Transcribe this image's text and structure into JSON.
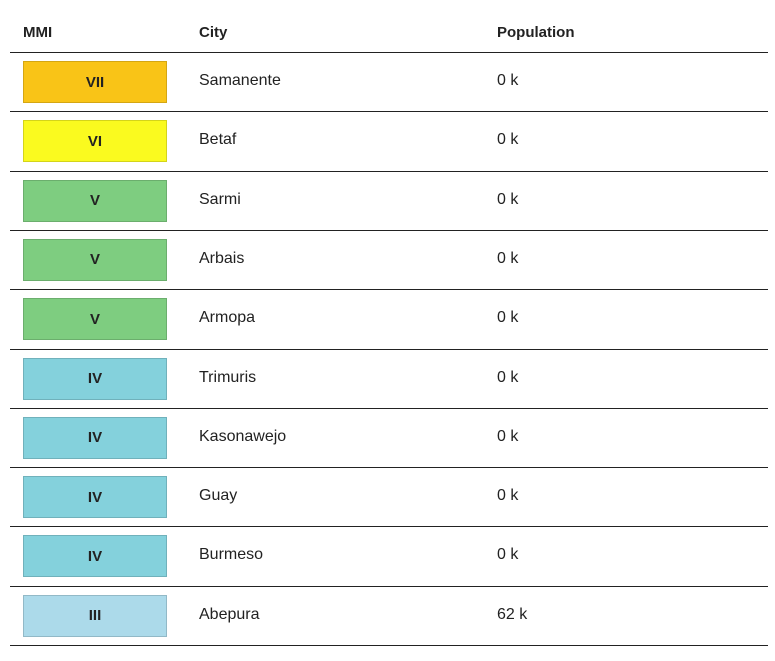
{
  "table": {
    "headers": [
      "MMI",
      "City",
      "Population"
    ],
    "rows": [
      {
        "mmi": "VII",
        "color": "#f9c417",
        "city": "Samanente",
        "population": "0 k"
      },
      {
        "mmi": "VI",
        "color": "#fafa1f",
        "city": "Betaf",
        "population": "0 k"
      },
      {
        "mmi": "V",
        "color": "#7ecd80",
        "city": "Sarmi",
        "population": "0 k"
      },
      {
        "mmi": "V",
        "color": "#7ecd80",
        "city": "Arbais",
        "population": "0 k"
      },
      {
        "mmi": "V",
        "color": "#7ecd80",
        "city": "Armopa",
        "population": "0 k"
      },
      {
        "mmi": "IV",
        "color": "#84d1dc",
        "city": "Trimuris",
        "population": "0 k"
      },
      {
        "mmi": "IV",
        "color": "#84d1dc",
        "city": "Kasonawejo",
        "population": "0 k"
      },
      {
        "mmi": "IV",
        "color": "#84d1dc",
        "city": "Guay",
        "population": "0 k"
      },
      {
        "mmi": "IV",
        "color": "#84d1dc",
        "city": "Burmeso",
        "population": "0 k"
      },
      {
        "mmi": "III",
        "color": "#acdaea",
        "city": "Abepura",
        "population": "62 k"
      }
    ]
  }
}
